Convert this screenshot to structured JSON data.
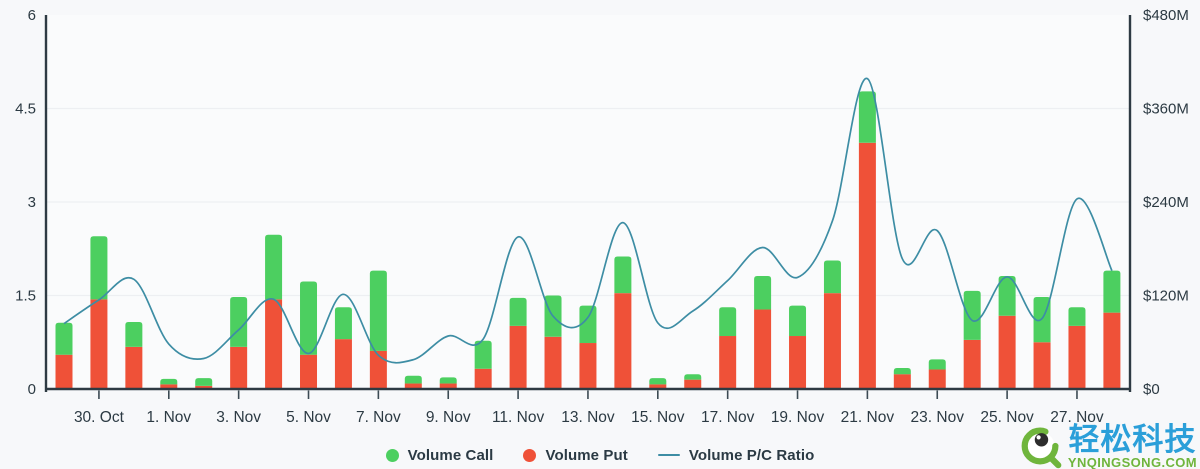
{
  "background": "#f7f8fa",
  "legend": [
    {
      "label": "Volume Call",
      "marker": "dot",
      "color": "#4ccf60"
    },
    {
      "label": "Volume Put",
      "marker": "dot",
      "color": "#ef5138"
    },
    {
      "label": "Volume P/C Ratio",
      "marker": "line",
      "color": "#3d8da4"
    }
  ],
  "watermark": {
    "brand_cn": "轻松科技",
    "brand_domain": "YNQINGSONG.COM",
    "color_blue": "#2b9fd9",
    "color_green": "#6fb53c"
  },
  "chart_data": {
    "type": "bar",
    "subtype": "stacked bars (right $ axis) + smooth line (left ratio axis)",
    "categories": [
      "29. Oct",
      "30. Oct",
      "31. Oct",
      "1. Nov",
      "2. Nov",
      "3. Nov",
      "4. Nov",
      "5. Nov",
      "6. Nov",
      "7. Nov",
      "8. Nov",
      "9. Nov",
      "10. Nov",
      "11. Nov",
      "12. Nov",
      "13. Nov",
      "14. Nov",
      "15. Nov",
      "16. Nov",
      "17. Nov",
      "18. Nov",
      "19. Nov",
      "20. Nov",
      "21. Nov",
      "22. Nov",
      "23. Nov",
      "24. Nov",
      "25. Nov",
      "26. Nov",
      "27. Nov",
      "28. Nov"
    ],
    "x_tick_labels": [
      "30. Oct",
      "1. Nov",
      "3. Nov",
      "5. Nov",
      "7. Nov",
      "9. Nov",
      "11. Nov",
      "13. Nov",
      "15. Nov",
      "17. Nov",
      "19. Nov",
      "21. Nov",
      "23. Nov",
      "25. Nov",
      "27. Nov"
    ],
    "x_tick_indices": [
      1,
      3,
      5,
      7,
      9,
      11,
      13,
      15,
      17,
      19,
      21,
      23,
      25,
      27,
      29
    ],
    "series": [
      {
        "name": "Volume Call",
        "type": "bar",
        "stack": "volume",
        "axis": "right",
        "unit": "M$",
        "color": "#4ccf60",
        "values": [
          41,
          81,
          32,
          7,
          10,
          64,
          83,
          94,
          41,
          103,
          10,
          8,
          36,
          36,
          53,
          48,
          47,
          8,
          7,
          37,
          43,
          39,
          42,
          66,
          8,
          13,
          63,
          51,
          58,
          24,
          54
        ]
      },
      {
        "name": "Volume Put",
        "type": "bar",
        "stack": "volume",
        "axis": "right",
        "unit": "M$",
        "color": "#ef5138",
        "values": [
          44,
          115,
          54,
          6,
          4,
          54,
          115,
          44,
          64,
          49,
          7,
          7,
          26,
          81,
          67,
          59,
          123,
          6,
          12,
          68,
          102,
          68,
          123,
          316,
          19,
          25,
          63,
          94,
          60,
          81,
          98
        ]
      },
      {
        "name": "Volume P/C Ratio",
        "type": "line",
        "axis": "left",
        "color": "#3d8da4",
        "values": [
          1.05,
          1.43,
          1.76,
          0.72,
          0.49,
          0.95,
          1.44,
          0.57,
          1.52,
          0.54,
          0.47,
          0.85,
          0.8,
          2.44,
          1.17,
          1.15,
          2.67,
          1.06,
          1.25,
          1.74,
          2.27,
          1.79,
          2.7,
          4.98,
          2.09,
          2.54,
          1.1,
          1.8,
          1.13,
          3.05,
          1.9
        ]
      }
    ],
    "left_axis": {
      "tick_labels": [
        "0",
        "1.5",
        "3",
        "4.5",
        "6"
      ],
      "tick_values": [
        0,
        1.5,
        3,
        4.5,
        6
      ],
      "range": [
        0,
        6
      ]
    },
    "right_axis": {
      "tick_labels": [
        "$0",
        "$120M",
        "$240M",
        "$360M",
        "$480M"
      ],
      "tick_values": [
        0,
        120,
        240,
        360,
        480
      ],
      "range_millions": [
        0,
        480
      ]
    },
    "grid": "horizontal only, very light",
    "legend_position": "bottom center",
    "title": ""
  }
}
